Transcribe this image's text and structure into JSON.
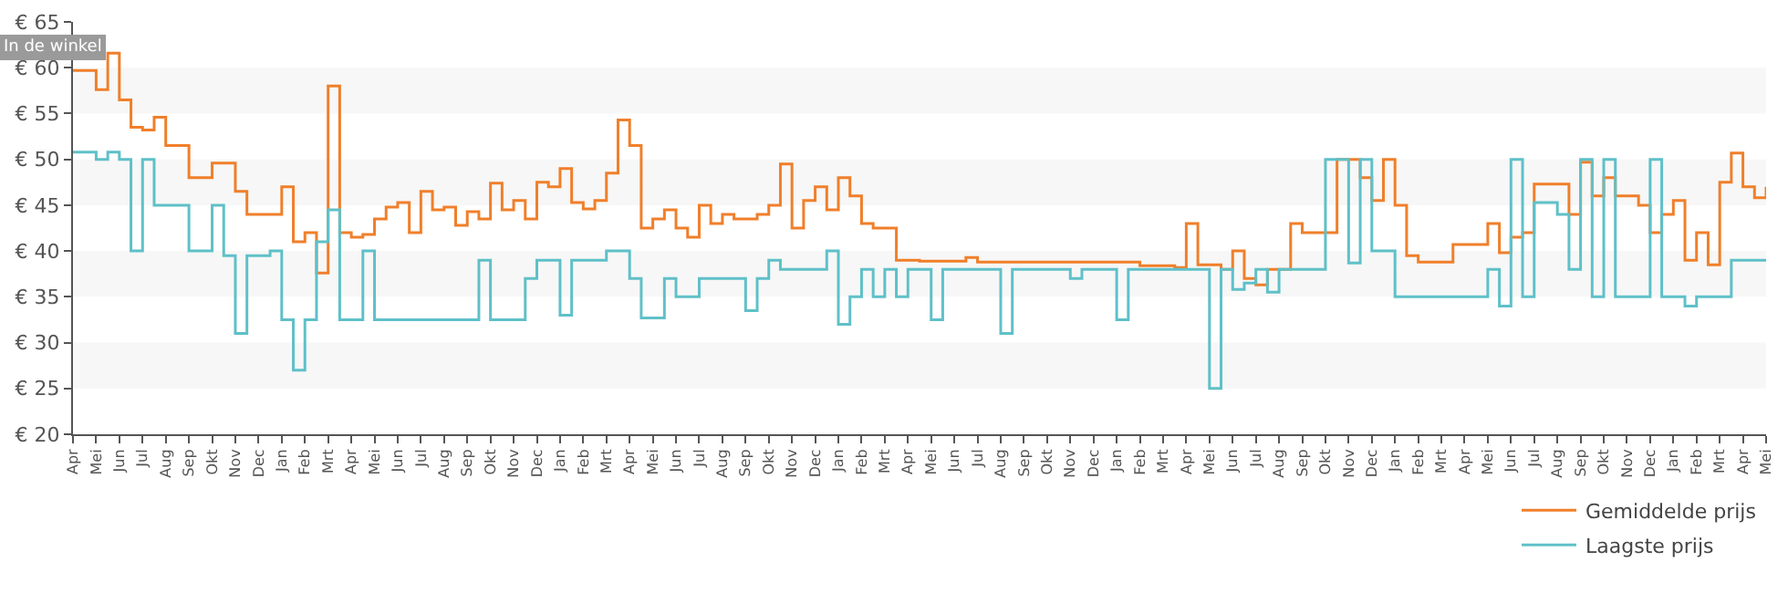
{
  "chart_data": {
    "type": "step",
    "annotations": [
      "In de winkel"
    ],
    "categories": [
      "Apr",
      null,
      "Mei",
      null,
      "Jun",
      null,
      "Jul",
      null,
      "Aug",
      null,
      "Sep",
      null,
      "Okt",
      null,
      "Nov",
      null,
      "Dec",
      null,
      "Jan",
      null,
      "Feb",
      null,
      "Mrt",
      null,
      "Apr",
      null,
      "Mei",
      null,
      "Jun",
      null,
      "Jul",
      null,
      "Aug",
      null,
      "Sep",
      null,
      "Okt",
      null,
      "Nov",
      null,
      "Dec",
      null,
      "Jan",
      null,
      "Feb",
      null,
      "Mrt",
      null,
      "Apr",
      null,
      "Mei",
      null,
      "Jun",
      null,
      "Jul",
      null,
      "Aug",
      null,
      "Sep",
      null,
      "Okt",
      null,
      "Nov",
      null,
      "Dec",
      null,
      "Jan",
      null,
      "Feb",
      null,
      "Mrt",
      null,
      "Apr",
      null,
      "Mei",
      null,
      "Jun",
      null,
      "Jul",
      null,
      "Aug",
      null,
      "Sep",
      null,
      "Okt",
      null,
      "Nov",
      null,
      "Dec",
      null,
      "Jan",
      null,
      "Feb",
      null,
      "Mrt",
      null,
      "Apr",
      null,
      "Mei",
      null,
      "Jun",
      null,
      "Jul",
      null,
      "Aug",
      null,
      "Sep",
      null,
      "Okt",
      null,
      "Nov",
      null,
      "Dec",
      null,
      "Jan",
      null,
      "Feb",
      null,
      "Mrt",
      null,
      "Apr",
      null,
      "Mei",
      null,
      "Jun",
      null,
      "Jul",
      null,
      "Aug",
      null,
      "Sep",
      null,
      "Okt",
      null,
      "Nov",
      null,
      "Dec",
      null,
      "Jan",
      null,
      "Feb",
      null,
      "Mrt",
      null,
      "Apr",
      null,
      "Mei"
    ],
    "ylim": [
      20,
      65
    ],
    "yticks": [
      {
        "value": 20,
        "label": "€ 20"
      },
      {
        "value": 25,
        "label": "€ 25"
      },
      {
        "value": 30,
        "label": "€ 30"
      },
      {
        "value": 35,
        "label": "€ 35"
      },
      {
        "value": 40,
        "label": "€ 40"
      },
      {
        "value": 45,
        "label": "€ 45"
      },
      {
        "value": 50,
        "label": "€ 50"
      },
      {
        "value": 55,
        "label": "€ 55"
      },
      {
        "value": 60,
        "label": "€ 60"
      },
      {
        "value": 65,
        "label": "€ 65"
      }
    ],
    "bands": [
      {
        "axis": "y",
        "from": 25,
        "to": 30,
        "color": "#f7f7f7"
      },
      {
        "axis": "y",
        "from": 35,
        "to": 40,
        "color": "#f7f7f7"
      },
      {
        "axis": "y",
        "from": 45,
        "to": 50,
        "color": "#f7f7f7"
      },
      {
        "axis": "y",
        "from": 55,
        "to": 60,
        "color": "#f7f7f7"
      }
    ],
    "legend": "bottom right",
    "series": [
      {
        "name": "Gemiddelde prijs",
        "color": "#f07f2a",
        "values": [
          59.7,
          59.7,
          57.6,
          61.6,
          56.5,
          53.5,
          53.2,
          54.6,
          51.5,
          51.5,
          48,
          48,
          49.6,
          49.6,
          46.5,
          44,
          44,
          44,
          47,
          41,
          42,
          37.6,
          58,
          42,
          41.5,
          41.8,
          43.5,
          44.8,
          45.3,
          42,
          46.5,
          44.5,
          44.8,
          42.8,
          44.3,
          43.5,
          47.4,
          44.5,
          45.5,
          43.5,
          47.5,
          47,
          49,
          45.3,
          44.6,
          45.5,
          48.5,
          54.3,
          51.5,
          42.5,
          43.5,
          44.5,
          42.5,
          41.5,
          45,
          43,
          44,
          43.5,
          43.5,
          44,
          45,
          49.5,
          42.5,
          45.5,
          47,
          44.5,
          48,
          46,
          43,
          42.5,
          42.5,
          39,
          39,
          38.9,
          38.9,
          38.9,
          38.9,
          39.3,
          38.8,
          38.8,
          38.8,
          38.8,
          38.8,
          38.8,
          38.8,
          38.8,
          38.8,
          38.8,
          38.8,
          38.8,
          38.8,
          38.8,
          38.4,
          38.4,
          38.4,
          38.2,
          43,
          38.5,
          38.5,
          38,
          40,
          37,
          36.3,
          38,
          38,
          43,
          42,
          42,
          42,
          50,
          50,
          48,
          45.5,
          50,
          45,
          39.5,
          38.8,
          38.8,
          38.8,
          40.7,
          40.7,
          40.7,
          43,
          39.8,
          41.5,
          42,
          47.3,
          47.3,
          47.3,
          44,
          49.7,
          46,
          48,
          46,
          46,
          45,
          42,
          44,
          45.5,
          39,
          42,
          38.5,
          47.5,
          50.7,
          47,
          45.8,
          47
        ]
      },
      {
        "name": "Laagste prijs",
        "color": "#5fc0c8",
        "values": [
          50.8,
          50.8,
          50,
          50.8,
          50,
          40,
          50,
          45,
          45,
          45,
          40,
          40,
          45,
          39.5,
          31,
          39.5,
          39.5,
          40,
          32.5,
          27,
          32.5,
          41,
          44.5,
          32.5,
          32.5,
          40,
          32.5,
          32.5,
          32.5,
          32.5,
          32.5,
          32.5,
          32.5,
          32.5,
          32.5,
          39,
          32.5,
          32.5,
          32.5,
          37,
          39,
          39,
          33,
          39,
          39,
          39,
          40,
          40,
          37,
          32.7,
          32.7,
          37,
          35,
          35,
          37,
          37,
          37,
          37,
          33.5,
          37,
          39,
          38,
          38,
          38,
          38,
          40,
          32,
          35,
          38,
          35,
          38,
          35,
          38,
          38,
          32.5,
          38,
          38,
          38,
          38,
          38,
          31,
          38,
          38,
          38,
          38,
          38,
          37,
          38,
          38,
          38,
          32.5,
          38,
          38,
          38,
          38,
          38,
          38,
          38,
          25,
          38,
          35.8,
          36.5,
          38,
          35.5,
          38,
          38,
          38,
          38,
          50,
          50,
          38.7,
          50,
          40,
          40,
          35,
          35,
          35,
          35,
          35,
          35,
          35,
          35,
          38,
          34,
          50,
          35,
          45.3,
          45.3,
          44,
          38,
          50,
          35,
          50,
          35,
          35,
          35,
          50,
          35,
          35,
          34,
          35,
          35,
          35,
          39,
          39,
          39,
          39
        ]
      }
    ]
  }
}
